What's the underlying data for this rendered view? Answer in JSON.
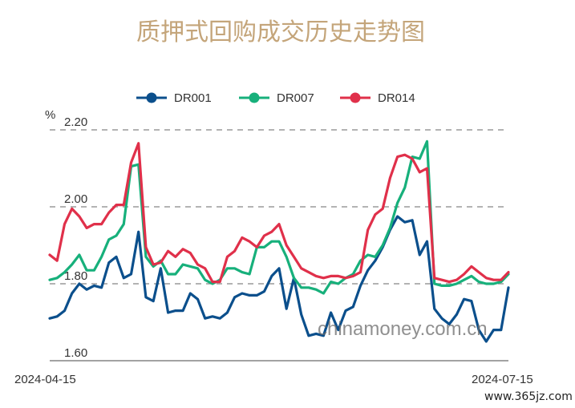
{
  "chart_data": {
    "type": "line",
    "title": "质押式回购成交历史走势图",
    "ylabel": "%",
    "ylim": [
      1.55,
      2.25
    ],
    "yticks": [
      1.6,
      1.8,
      2.0,
      2.2
    ],
    "ytick_labels": [
      "1.60",
      "1.80",
      "2.00",
      "2.20"
    ],
    "x_start_label": "2024-04-15",
    "x_end_label": "2024-07-15",
    "grid": true,
    "legend_position": "top",
    "series": [
      {
        "name": "DR001",
        "color": "#0b4f8c",
        "values": [
          1.71,
          1.715,
          1.73,
          1.775,
          1.8,
          1.785,
          1.795,
          1.79,
          1.855,
          1.87,
          1.815,
          1.825,
          1.935,
          1.765,
          1.755,
          1.84,
          1.725,
          1.73,
          1.73,
          1.775,
          1.76,
          1.71,
          1.715,
          1.71,
          1.725,
          1.765,
          1.775,
          1.77,
          1.77,
          1.78,
          1.82,
          1.84,
          1.735,
          1.815,
          1.72,
          1.665,
          1.67,
          1.665,
          1.725,
          1.68,
          1.73,
          1.74,
          1.795,
          1.835,
          1.86,
          1.895,
          1.94,
          1.975,
          1.96,
          1.965,
          1.875,
          1.91,
          1.735,
          1.71,
          1.695,
          1.72,
          1.76,
          1.755,
          1.68,
          1.65,
          1.68,
          1.68,
          1.79
        ]
      },
      {
        "name": "DR007",
        "color": "#17b07b",
        "values": [
          1.81,
          1.815,
          1.83,
          1.85,
          1.875,
          1.835,
          1.835,
          1.87,
          1.915,
          1.925,
          1.955,
          2.105,
          2.11,
          1.87,
          1.845,
          1.86,
          1.825,
          1.825,
          1.85,
          1.845,
          1.84,
          1.81,
          1.8,
          1.81,
          1.84,
          1.84,
          1.83,
          1.825,
          1.895,
          1.895,
          1.91,
          1.91,
          1.87,
          1.815,
          1.79,
          1.79,
          1.785,
          1.775,
          1.805,
          1.8,
          1.815,
          1.825,
          1.86,
          1.875,
          1.87,
          1.9,
          1.945,
          2.01,
          2.05,
          2.13,
          2.125,
          2.17,
          1.8,
          1.795,
          1.795,
          1.8,
          1.81,
          1.82,
          1.805,
          1.8,
          1.8,
          1.805,
          1.825
        ]
      },
      {
        "name": "DR014",
        "color": "#e0304a",
        "values": [
          1.875,
          1.86,
          1.955,
          1.995,
          1.975,
          1.945,
          1.955,
          1.955,
          1.985,
          2.005,
          2.005,
          2.115,
          2.165,
          1.895,
          1.85,
          1.855,
          1.885,
          1.87,
          1.89,
          1.88,
          1.85,
          1.84,
          1.805,
          1.805,
          1.87,
          1.885,
          1.92,
          1.91,
          1.895,
          1.925,
          1.935,
          1.955,
          1.9,
          1.87,
          1.84,
          1.83,
          1.82,
          1.815,
          1.82,
          1.82,
          1.815,
          1.82,
          1.83,
          1.94,
          1.98,
          1.995,
          2.075,
          2.13,
          2.135,
          2.125,
          2.09,
          2.1,
          1.815,
          1.81,
          1.805,
          1.81,
          1.825,
          1.845,
          1.83,
          1.815,
          1.81,
          1.81,
          1.83
        ]
      }
    ]
  },
  "watermarks": [
    "chinamoney.com.cn",
    "www.365jz.com"
  ]
}
